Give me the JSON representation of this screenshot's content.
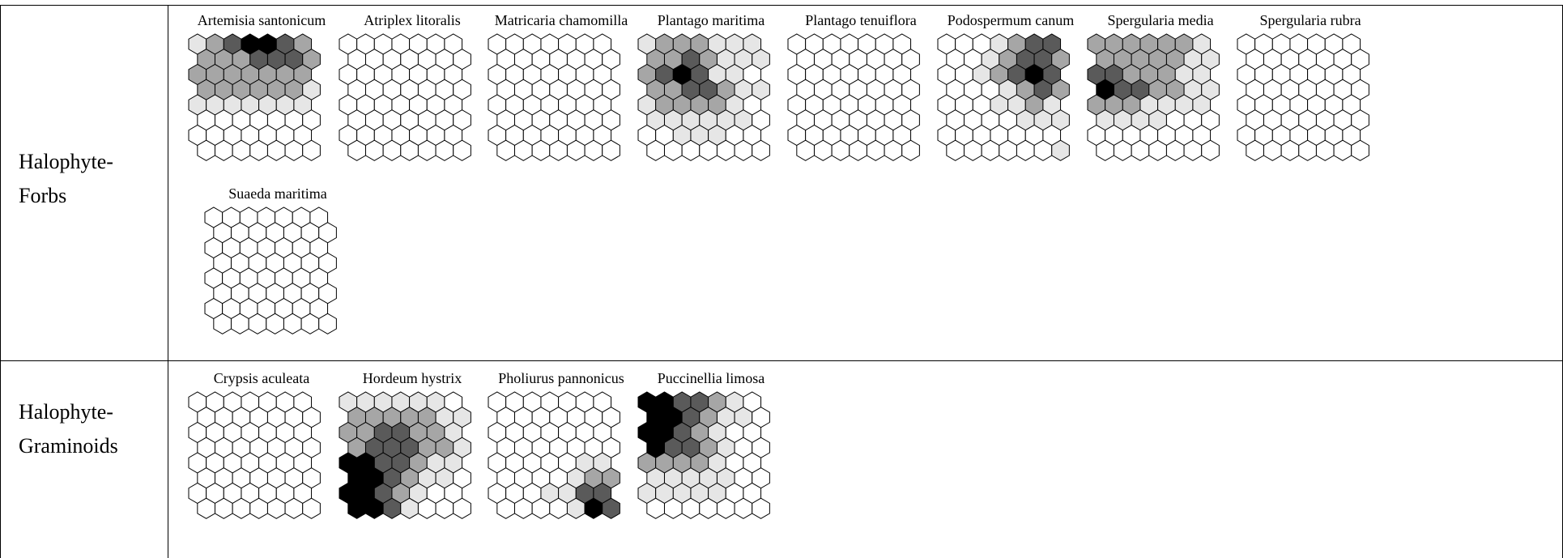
{
  "groups": [
    {
      "label": "Halophyte-\nForbs",
      "species": [
        {
          "name": "Artemisia santonicum",
          "cells": [
            [
              1,
              2,
              3,
              4,
              4,
              3,
              2
            ],
            [
              2,
              2,
              2,
              3,
              3,
              3,
              2
            ],
            [
              2,
              2,
              2,
              2,
              2,
              2,
              2
            ],
            [
              2,
              2,
              2,
              2,
              2,
              2,
              1
            ],
            [
              1,
              1,
              1,
              1,
              1,
              1,
              1
            ],
            [
              0,
              0,
              0,
              0,
              0,
              0,
              0
            ],
            [
              0,
              0,
              0,
              0,
              0,
              0,
              0
            ],
            [
              0,
              0,
              0,
              0,
              0,
              0,
              0
            ]
          ]
        },
        {
          "name": "Atriplex litoralis",
          "cells": [
            [
              0,
              0,
              0,
              0,
              0,
              0,
              0
            ],
            [
              0,
              0,
              0,
              0,
              0,
              0,
              0
            ],
            [
              0,
              0,
              0,
              0,
              0,
              0,
              0
            ],
            [
              0,
              0,
              0,
              0,
              0,
              0,
              0
            ],
            [
              0,
              0,
              0,
              0,
              0,
              0,
              0
            ],
            [
              0,
              0,
              0,
              0,
              0,
              0,
              0
            ],
            [
              0,
              0,
              0,
              0,
              0,
              0,
              0
            ],
            [
              0,
              0,
              0,
              0,
              0,
              0,
              0
            ]
          ]
        },
        {
          "name": "Matricaria chamomilla",
          "cells": [
            [
              0,
              0,
              0,
              0,
              0,
              0,
              0
            ],
            [
              0,
              0,
              0,
              0,
              0,
              0,
              0
            ],
            [
              0,
              0,
              0,
              0,
              0,
              0,
              0
            ],
            [
              0,
              0,
              0,
              0,
              0,
              0,
              0
            ],
            [
              0,
              0,
              0,
              0,
              0,
              0,
              0
            ],
            [
              0,
              0,
              0,
              0,
              0,
              0,
              0
            ],
            [
              0,
              0,
              0,
              0,
              0,
              0,
              0
            ],
            [
              0,
              0,
              0,
              0,
              0,
              0,
              0
            ]
          ]
        },
        {
          "name": "Plantago maritima",
          "cells": [
            [
              1,
              2,
              2,
              2,
              1,
              1,
              1
            ],
            [
              2,
              2,
              3,
              2,
              1,
              1,
              1
            ],
            [
              2,
              3,
              4,
              3,
              1,
              1,
              0
            ],
            [
              2,
              2,
              3,
              3,
              2,
              1,
              1
            ],
            [
              1,
              2,
              2,
              2,
              2,
              1,
              0
            ],
            [
              1,
              1,
              1,
              1,
              1,
              1,
              0
            ],
            [
              0,
              0,
              1,
              1,
              1,
              0,
              0
            ],
            [
              0,
              0,
              0,
              0,
              0,
              0,
              0
            ]
          ]
        },
        {
          "name": "Plantago tenuiflora",
          "cells": [
            [
              0,
              0,
              0,
              0,
              0,
              0,
              0
            ],
            [
              0,
              0,
              0,
              0,
              0,
              0,
              0
            ],
            [
              0,
              0,
              0,
              0,
              0,
              0,
              0
            ],
            [
              0,
              0,
              0,
              0,
              0,
              0,
              0
            ],
            [
              0,
              0,
              0,
              0,
              0,
              0,
              0
            ],
            [
              0,
              0,
              0,
              0,
              0,
              0,
              0
            ],
            [
              0,
              0,
              0,
              0,
              0,
              0,
              0
            ],
            [
              0,
              0,
              0,
              0,
              0,
              0,
              0
            ]
          ]
        },
        {
          "name": "Podospermum canum",
          "cells": [
            [
              0,
              0,
              0,
              1,
              2,
              3,
              3
            ],
            [
              0,
              0,
              1,
              2,
              3,
              3,
              2
            ],
            [
              0,
              0,
              1,
              2,
              3,
              4,
              3
            ],
            [
              0,
              0,
              0,
              1,
              2,
              3,
              2
            ],
            [
              0,
              0,
              0,
              1,
              1,
              2,
              1
            ],
            [
              0,
              0,
              0,
              0,
              1,
              1,
              1
            ],
            [
              0,
              0,
              0,
              0,
              0,
              0,
              0
            ],
            [
              0,
              0,
              0,
              0,
              0,
              0,
              1
            ]
          ]
        },
        {
          "name": "Spergularia media",
          "cells": [
            [
              2,
              2,
              2,
              2,
              2,
              2,
              1
            ],
            [
              2,
              2,
              2,
              2,
              2,
              1,
              1
            ],
            [
              3,
              3,
              2,
              2,
              2,
              1,
              1
            ],
            [
              4,
              3,
              3,
              2,
              2,
              1,
              1
            ],
            [
              2,
              2,
              2,
              1,
              1,
              1,
              1
            ],
            [
              1,
              1,
              1,
              1,
              0,
              0,
              0
            ],
            [
              0,
              0,
              0,
              0,
              0,
              0,
              0
            ],
            [
              0,
              0,
              0,
              0,
              0,
              0,
              0
            ]
          ]
        },
        {
          "name": "Spergularia rubra",
          "cells": [
            [
              0,
              0,
              0,
              0,
              0,
              0,
              0
            ],
            [
              0,
              0,
              0,
              0,
              0,
              0,
              0
            ],
            [
              0,
              0,
              0,
              0,
              0,
              0,
              0
            ],
            [
              0,
              0,
              0,
              0,
              0,
              0,
              0
            ],
            [
              0,
              0,
              0,
              0,
              0,
              0,
              0
            ],
            [
              0,
              0,
              0,
              0,
              0,
              0,
              0
            ],
            [
              0,
              0,
              0,
              0,
              0,
              0,
              0
            ],
            [
              0,
              0,
              0,
              0,
              0,
              0,
              0
            ]
          ]
        },
        {
          "name": "Suaeda maritima",
          "cells": [
            [
              0,
              0,
              0,
              0,
              0,
              0,
              0
            ],
            [
              0,
              0,
              0,
              0,
              0,
              0,
              0
            ],
            [
              0,
              0,
              0,
              0,
              0,
              0,
              0
            ],
            [
              0,
              0,
              0,
              0,
              0,
              0,
              0
            ],
            [
              0,
              0,
              0,
              0,
              0,
              0,
              0
            ],
            [
              0,
              0,
              0,
              0,
              0,
              0,
              0
            ],
            [
              0,
              0,
              0,
              0,
              0,
              0,
              0
            ],
            [
              0,
              0,
              0,
              0,
              0,
              0,
              0
            ]
          ]
        }
      ]
    },
    {
      "label": "Halophyte-\nGraminoids",
      "species": [
        {
          "name": "Crypsis aculeata",
          "cells": [
            [
              0,
              0,
              0,
              0,
              0,
              0,
              0
            ],
            [
              0,
              0,
              0,
              0,
              0,
              0,
              0
            ],
            [
              0,
              0,
              0,
              0,
              0,
              0,
              0
            ],
            [
              0,
              0,
              0,
              0,
              0,
              0,
              0
            ],
            [
              0,
              0,
              0,
              0,
              0,
              0,
              0
            ],
            [
              0,
              0,
              0,
              0,
              0,
              0,
              0
            ],
            [
              0,
              0,
              0,
              0,
              0,
              0,
              0
            ],
            [
              0,
              0,
              0,
              0,
              0,
              0,
              0
            ]
          ]
        },
        {
          "name": "Hordeum hystrix",
          "cells": [
            [
              1,
              1,
              1,
              1,
              1,
              1,
              0
            ],
            [
              2,
              2,
              2,
              2,
              2,
              1,
              1
            ],
            [
              2,
              2,
              3,
              3,
              2,
              2,
              1
            ],
            [
              2,
              3,
              3,
              3,
              2,
              2,
              1
            ],
            [
              4,
              4,
              3,
              3,
              2,
              1,
              1
            ],
            [
              4,
              4,
              3,
              2,
              1,
              1,
              0
            ],
            [
              4,
              4,
              3,
              2,
              1,
              0,
              0
            ],
            [
              4,
              4,
              3,
              1,
              0,
              0,
              0
            ]
          ]
        },
        {
          "name": "Pholiurus pannonicus",
          "cells": [
            [
              0,
              0,
              0,
              0,
              0,
              0,
              0
            ],
            [
              0,
              0,
              0,
              0,
              0,
              0,
              0
            ],
            [
              0,
              0,
              0,
              0,
              0,
              0,
              0
            ],
            [
              0,
              0,
              0,
              0,
              0,
              0,
              0
            ],
            [
              0,
              0,
              0,
              0,
              0,
              1,
              1
            ],
            [
              0,
              0,
              0,
              0,
              1,
              2,
              2
            ],
            [
              0,
              0,
              0,
              1,
              1,
              3,
              3
            ],
            [
              0,
              0,
              0,
              0,
              1,
              4,
              3
            ]
          ]
        },
        {
          "name": "Puccinellia limosa",
          "cells": [
            [
              4,
              4,
              3,
              3,
              2,
              1,
              0
            ],
            [
              4,
              4,
              3,
              2,
              1,
              1,
              0
            ],
            [
              4,
              4,
              3,
              2,
              1,
              0,
              0
            ],
            [
              4,
              3,
              3,
              2,
              1,
              0,
              0
            ],
            [
              2,
              2,
              2,
              2,
              1,
              0,
              0
            ],
            [
              1,
              1,
              1,
              1,
              1,
              0,
              0
            ],
            [
              1,
              1,
              1,
              1,
              1,
              0,
              0
            ],
            [
              0,
              0,
              0,
              0,
              0,
              0,
              0
            ]
          ]
        }
      ]
    }
  ],
  "shade_colors": [
    "#ffffff",
    "#e6e6e6",
    "#a6a6a6",
    "#5a5a5a",
    "#000000"
  ]
}
